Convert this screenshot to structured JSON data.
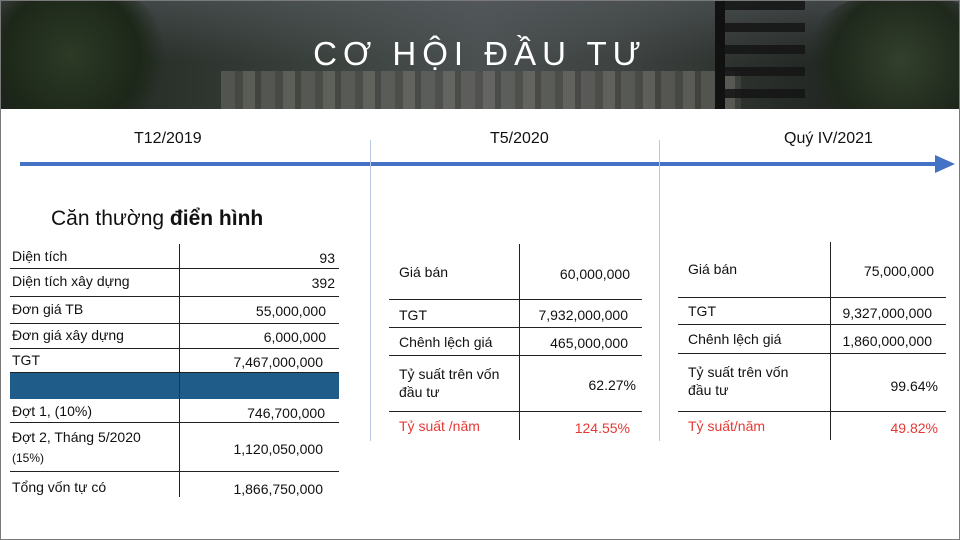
{
  "title": "CƠ HỘI ĐẦU TƯ",
  "timeline": {
    "dates": [
      "T12/2019",
      "T5/2020",
      "Quý IV/2021"
    ]
  },
  "left": {
    "heading_regular": "Căn thường ",
    "heading_bold": "điển hình",
    "rows": [
      {
        "label": "Diện tích",
        "value": "93"
      },
      {
        "label": "Diện tích xây dựng",
        "value": "392"
      },
      {
        "label": "Đơn giá TB",
        "value": "55,000,000"
      },
      {
        "label": "Đơn giá xây dựng",
        "value": "6,000,000"
      },
      {
        "label": "TGT",
        "value": "7,467,000,000"
      },
      {
        "label": "",
        "value": ""
      },
      {
        "label": "Đợt 1, (10%)",
        "value": "746,700,000"
      },
      {
        "label": "Đợt 2, Tháng 5/2020",
        "sub": "(15%)",
        "value": "1,120,050,000"
      },
      {
        "label": "Tổng vốn tự có",
        "value": "1,866,750,000"
      }
    ],
    "highlight_color": "#1f5c8a"
  },
  "mid": {
    "rows": [
      {
        "label": "Giá bán",
        "value": "60,000,000"
      },
      {
        "label": "TGT",
        "value": "7,932,000,000"
      },
      {
        "label": "Chênh lệch giá",
        "value": "465,000,000"
      },
      {
        "label": "Tỷ suất trên vốn",
        "label2": "đầu tư",
        "value": "62.27%"
      },
      {
        "label": "Tỷ suất /năm",
        "value": "124.55%",
        "accent": true
      }
    ]
  },
  "right": {
    "rows": [
      {
        "label": "Giá bán",
        "value": "75,000,000"
      },
      {
        "label": "TGT",
        "value": "9,327,000,000"
      },
      {
        "label": "Chênh lệch giá",
        "value": "1,860,000,000"
      },
      {
        "label": "Tỷ suất trên vốn",
        "label2": "đầu tư",
        "value": "99.64%"
      },
      {
        "label": "Tỷ suất/năm",
        "value": "49.82%",
        "accent": true
      }
    ]
  },
  "colors": {
    "arrow": "#4472c4",
    "accent": "#e53935"
  }
}
